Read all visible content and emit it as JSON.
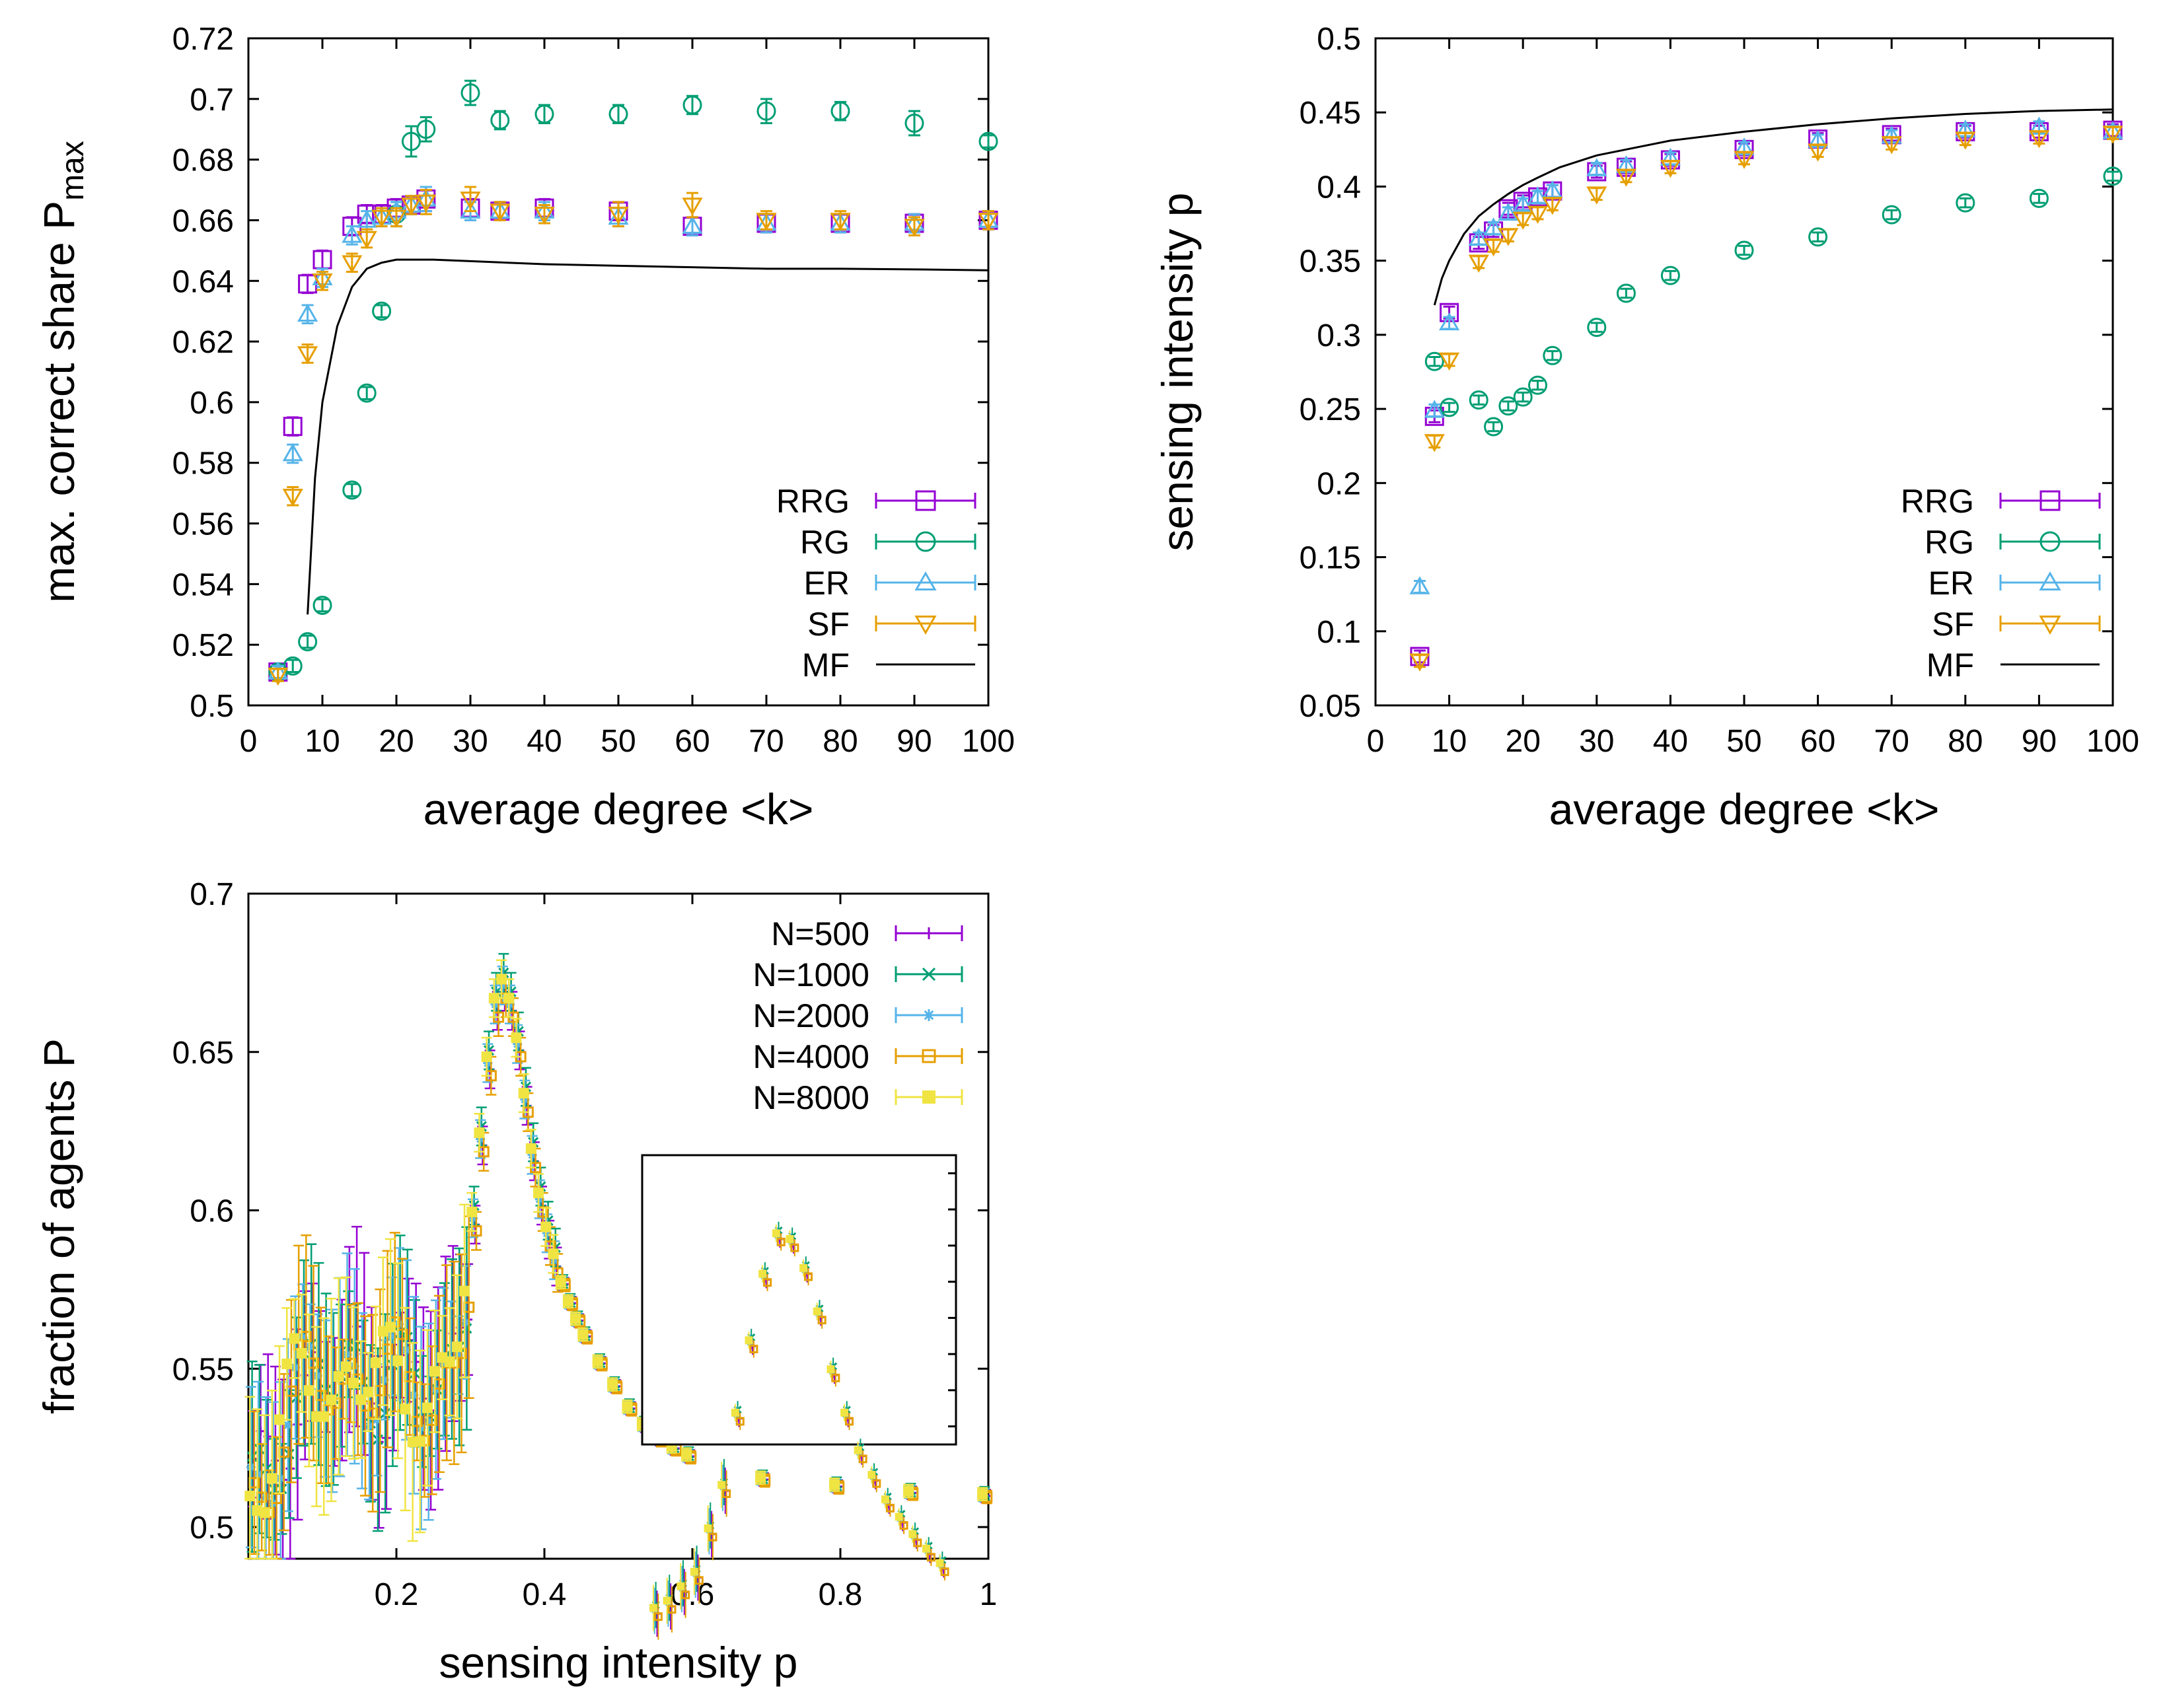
{
  "chart_data": [
    {
      "type": "scatter",
      "title": "",
      "xlabel": "average degree <k>",
      "ylabel": "max. correct share P",
      "ylabel_subscript": "max",
      "xlim": [
        0,
        100
      ],
      "ylim": [
        0.5,
        0.72
      ],
      "xticks": [
        0,
        10,
        20,
        30,
        40,
        50,
        60,
        70,
        80,
        90,
        100
      ],
      "yticks": [
        0.5,
        0.52,
        0.54,
        0.56,
        0.58,
        0.6,
        0.62,
        0.64,
        0.66,
        0.68,
        0.7,
        0.72
      ],
      "legend_position": "bottom-right",
      "series": [
        {
          "name": "RRG",
          "color": "#9400d3",
          "marker": "square",
          "x": [
            4,
            6,
            8,
            10,
            14,
            16,
            18,
            20,
            22,
            24,
            30,
            34,
            40,
            50,
            60,
            70,
            80,
            90,
            100
          ],
          "y": [
            0.511,
            0.592,
            0.639,
            0.647,
            0.658,
            0.662,
            0.662,
            0.664,
            0.665,
            0.667,
            0.664,
            0.663,
            0.664,
            0.663,
            0.658,
            0.659,
            0.659,
            0.659,
            0.66
          ],
          "err": [
            0.002,
            0.003,
            0.003,
            0.003,
            0.003,
            0.003,
            0.003,
            0.003,
            0.003,
            0.004,
            0.003,
            0.003,
            0.003,
            0.003,
            0.003,
            0.003,
            0.003,
            0.003,
            0.003
          ]
        },
        {
          "name": "RG",
          "color": "#009e73",
          "marker": "circle",
          "x": [
            4,
            6,
            8,
            10,
            14,
            16,
            18,
            20,
            22,
            24,
            30,
            34,
            40,
            50,
            60,
            70,
            80,
            90,
            100
          ],
          "y": [
            0.511,
            0.513,
            0.521,
            0.533,
            0.571,
            0.603,
            0.63,
            0.662,
            0.686,
            0.69,
            0.702,
            0.693,
            0.695,
            0.695,
            0.698,
            0.696,
            0.696,
            0.692,
            0.686
          ],
          "err": [
            0.002,
            0.002,
            0.002,
            0.002,
            0.002,
            0.002,
            0.002,
            0.004,
            0.005,
            0.004,
            0.004,
            0.003,
            0.003,
            0.003,
            0.003,
            0.004,
            0.003,
            0.004,
            0.002
          ]
        },
        {
          "name": "ER",
          "color": "#56b4e9",
          "marker": "triangle-up",
          "x": [
            4,
            6,
            8,
            10,
            14,
            16,
            18,
            20,
            22,
            24,
            30,
            34,
            40,
            50,
            60,
            70,
            80,
            90,
            100
          ],
          "y": [
            0.511,
            0.583,
            0.629,
            0.641,
            0.655,
            0.66,
            0.661,
            0.663,
            0.665,
            0.667,
            0.663,
            0.663,
            0.663,
            0.661,
            0.658,
            0.659,
            0.659,
            0.659,
            0.66
          ],
          "err": [
            0.002,
            0.003,
            0.003,
            0.003,
            0.003,
            0.003,
            0.003,
            0.003,
            0.003,
            0.004,
            0.003,
            0.003,
            0.003,
            0.003,
            0.003,
            0.003,
            0.003,
            0.003,
            0.003
          ]
        },
        {
          "name": "SF",
          "color": "#e69f00",
          "marker": "triangle-down",
          "x": [
            4,
            6,
            8,
            10,
            14,
            16,
            18,
            20,
            22,
            24,
            30,
            34,
            40,
            50,
            60,
            70,
            80,
            90,
            100
          ],
          "y": [
            0.51,
            0.569,
            0.616,
            0.64,
            0.646,
            0.654,
            0.661,
            0.661,
            0.665,
            0.666,
            0.667,
            0.663,
            0.662,
            0.662,
            0.665,
            0.66,
            0.66,
            0.658,
            0.66
          ],
          "err": [
            0.002,
            0.003,
            0.003,
            0.003,
            0.003,
            0.003,
            0.003,
            0.003,
            0.003,
            0.004,
            0.004,
            0.003,
            0.003,
            0.004,
            0.004,
            0.003,
            0.003,
            0.003,
            0.003
          ]
        },
        {
          "name": "MF",
          "color": "#000000",
          "marker": "line",
          "x": [
            8,
            9,
            10,
            12,
            14,
            16,
            18,
            20,
            22,
            25,
            30,
            40,
            50,
            60,
            70,
            80,
            90,
            100
          ],
          "y": [
            0.53,
            0.575,
            0.6,
            0.625,
            0.638,
            0.644,
            0.646,
            0.647,
            0.647,
            0.647,
            0.6465,
            0.6455,
            0.645,
            0.6445,
            0.644,
            0.644,
            0.6438,
            0.6435
          ]
        }
      ]
    },
    {
      "type": "scatter",
      "title": "",
      "xlabel": "average degree <k>",
      "ylabel": "sensing intensity p",
      "xlim": [
        0,
        100
      ],
      "ylim": [
        0.05,
        0.5
      ],
      "xticks": [
        0,
        10,
        20,
        30,
        40,
        50,
        60,
        70,
        80,
        90,
        100
      ],
      "yticks": [
        0.05,
        0.1,
        0.15,
        0.2,
        0.25,
        0.3,
        0.35,
        0.4,
        0.45,
        0.5
      ],
      "legend_position": "bottom-right",
      "series": [
        {
          "name": "RRG",
          "color": "#9400d3",
          "marker": "square",
          "x": [
            6,
            8,
            10,
            14,
            16,
            18,
            20,
            22,
            24,
            30,
            34,
            40,
            50,
            60,
            70,
            80,
            90,
            100
          ],
          "y": [
            0.083,
            0.245,
            0.315,
            0.362,
            0.37,
            0.385,
            0.39,
            0.393,
            0.397,
            0.41,
            0.413,
            0.418,
            0.425,
            0.432,
            0.435,
            0.437,
            0.437,
            0.438
          ],
          "err": [
            0.004,
            0.004,
            0.004,
            0.004,
            0.004,
            0.004,
            0.004,
            0.004,
            0.004,
            0.004,
            0.004,
            0.004,
            0.004,
            0.004,
            0.004,
            0.004,
            0.004,
            0.004
          ]
        },
        {
          "name": "RG",
          "color": "#009e73",
          "marker": "circle",
          "x": [
            8,
            10,
            14,
            16,
            18,
            20,
            22,
            24,
            30,
            34,
            40,
            50,
            60,
            70,
            80,
            90,
            100
          ],
          "y": [
            0.282,
            0.251,
            0.256,
            0.238,
            0.252,
            0.258,
            0.266,
            0.286,
            0.305,
            0.328,
            0.34,
            0.357,
            0.366,
            0.381,
            0.389,
            0.392,
            0.407
          ],
          "err": [
            0.003,
            0.003,
            0.003,
            0.003,
            0.003,
            0.003,
            0.003,
            0.003,
            0.003,
            0.003,
            0.003,
            0.003,
            0.003,
            0.003,
            0.003,
            0.003,
            0.003
          ]
        },
        {
          "name": "ER",
          "color": "#56b4e9",
          "marker": "triangle-up",
          "x": [
            6,
            8,
            10,
            14,
            16,
            18,
            20,
            22,
            24,
            30,
            34,
            40,
            50,
            60,
            70,
            80,
            90,
            100
          ],
          "y": [
            0.13,
            0.249,
            0.308,
            0.365,
            0.372,
            0.382,
            0.388,
            0.393,
            0.397,
            0.412,
            0.414,
            0.419,
            0.426,
            0.431,
            0.434,
            0.438,
            0.44,
            0.437
          ],
          "err": [
            0.004,
            0.004,
            0.004,
            0.004,
            0.004,
            0.004,
            0.004,
            0.004,
            0.004,
            0.004,
            0.004,
            0.004,
            0.004,
            0.004,
            0.004,
            0.004,
            0.004,
            0.004
          ]
        },
        {
          "name": "SF",
          "color": "#e69f00",
          "marker": "triangle-down",
          "x": [
            6,
            8,
            10,
            14,
            16,
            18,
            20,
            22,
            24,
            30,
            34,
            40,
            50,
            60,
            70,
            80,
            90,
            100
          ],
          "y": [
            0.08,
            0.228,
            0.283,
            0.349,
            0.36,
            0.367,
            0.378,
            0.382,
            0.388,
            0.395,
            0.407,
            0.413,
            0.419,
            0.424,
            0.429,
            0.432,
            0.433,
            0.436
          ],
          "err": [
            0.004,
            0.004,
            0.004,
            0.004,
            0.004,
            0.004,
            0.004,
            0.004,
            0.004,
            0.004,
            0.004,
            0.004,
            0.004,
            0.004,
            0.004,
            0.004,
            0.004,
            0.004
          ]
        },
        {
          "name": "MF",
          "color": "#000000",
          "marker": "line",
          "x": [
            8,
            9,
            10,
            12,
            14,
            16,
            18,
            20,
            22,
            25,
            30,
            35,
            40,
            50,
            60,
            70,
            80,
            90,
            100
          ],
          "y": [
            0.32,
            0.338,
            0.35,
            0.368,
            0.38,
            0.388,
            0.395,
            0.401,
            0.406,
            0.413,
            0.421,
            0.426,
            0.431,
            0.437,
            0.442,
            0.446,
            0.449,
            0.451,
            0.452
          ]
        }
      ]
    },
    {
      "type": "scatter",
      "title": "",
      "xlabel": "sensing intensity p",
      "ylabel": "fraction of agents P",
      "xlim": [
        0,
        1
      ],
      "ylim": [
        0.49,
        0.7
      ],
      "xticks": [
        0.2,
        0.4,
        0.6,
        0.8,
        1
      ],
      "xtick_labels": [
        "0.2",
        "0.4",
        "0.6",
        "0.8",
        "1"
      ],
      "yticks": [
        0.5,
        0.55,
        0.6,
        0.65,
        0.7
      ],
      "legend_position": "top-right",
      "inset": {
        "description": "zoom of peak region",
        "x_range": [
          0.25,
          0.45
        ],
        "y_range": [
          0.6,
          0.7
        ]
      },
      "series": [
        {
          "name": "N=500",
          "color": "#9400d3",
          "marker": "plus"
        },
        {
          "name": "N=1000",
          "color": "#009e73",
          "marker": "cross"
        },
        {
          "name": "N=2000",
          "color": "#56b4e9",
          "marker": "star"
        },
        {
          "name": "N=4000",
          "color": "#e69f00",
          "marker": "open-square"
        },
        {
          "name": "N=8000",
          "color": "#f0e442",
          "marker": "filled-square"
        }
      ],
      "curve": {
        "x": [
          0.0,
          0.02,
          0.04,
          0.06,
          0.08,
          0.1,
          0.12,
          0.14,
          0.16,
          0.18,
          0.2,
          0.22,
          0.24,
          0.26,
          0.28,
          0.3,
          0.31,
          0.32,
          0.33,
          0.34,
          0.35,
          0.36,
          0.37,
          0.38,
          0.39,
          0.4,
          0.42,
          0.44,
          0.46,
          0.48,
          0.5,
          0.52,
          0.54,
          0.56,
          0.6,
          0.65,
          0.7,
          0.75,
          0.8,
          0.85,
          0.9,
          0.95,
          1.0
        ],
        "y": [
          0.506,
          0.515,
          0.53,
          0.538,
          0.545,
          0.548,
          0.542,
          0.55,
          0.55,
          0.545,
          0.545,
          0.545,
          0.54,
          0.545,
          0.555,
          0.585,
          0.61,
          0.635,
          0.658,
          0.672,
          0.67,
          0.66,
          0.645,
          0.625,
          0.61,
          0.597,
          0.58,
          0.568,
          0.558,
          0.55,
          0.543,
          0.536,
          0.531,
          0.527,
          0.522,
          0.518,
          0.515,
          0.514,
          0.513,
          0.512,
          0.511,
          0.511,
          0.51
        ]
      }
    }
  ]
}
